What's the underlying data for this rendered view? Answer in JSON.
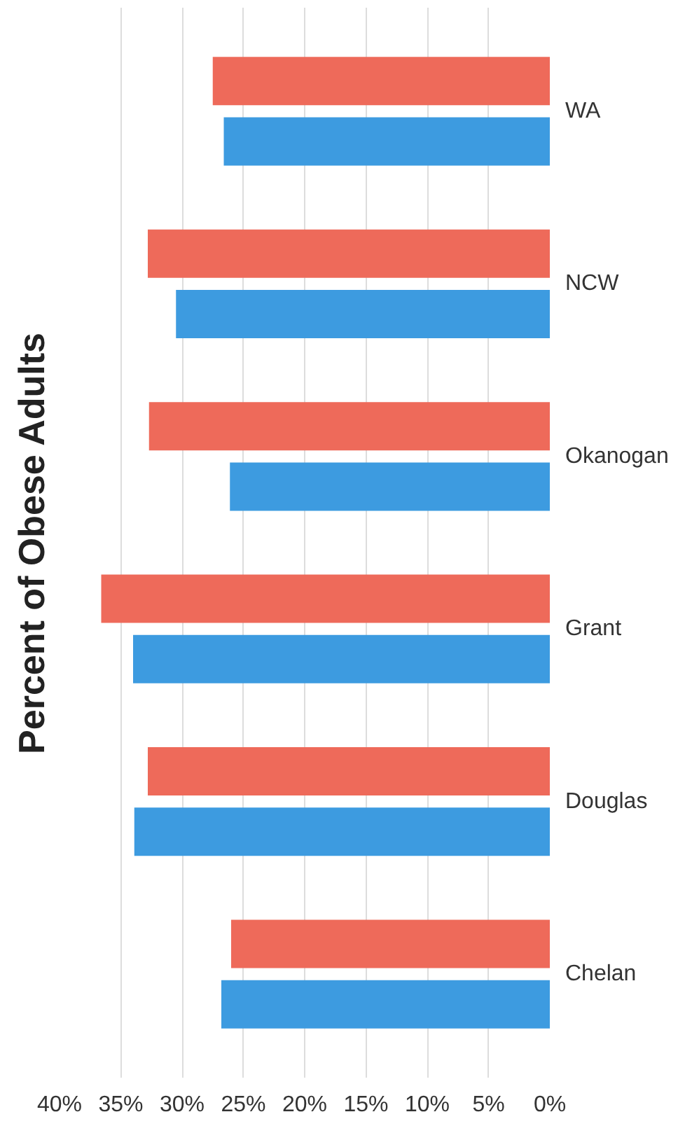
{
  "chart_data": {
    "type": "bar",
    "orientation": "horizontal",
    "title": "Percent of Obese Adults",
    "categories": [
      "WA",
      "NCW",
      "Okanogan",
      "Grant",
      "Douglas",
      "Chelan"
    ],
    "series": [
      {
        "color": "#ee6a5a",
        "values": [
          27.5,
          32.8,
          32.7,
          36.6,
          32.8,
          26.0
        ]
      },
      {
        "color": "#3d9be0",
        "values": [
          26.6,
          30.5,
          26.1,
          34.0,
          33.9,
          26.8
        ]
      }
    ],
    "xlim": [
      40,
      0
    ],
    "xticks": [
      {
        "value": 40,
        "label": "40%"
      },
      {
        "value": 35,
        "label": "35%"
      },
      {
        "value": 30,
        "label": "30%"
      },
      {
        "value": 25,
        "label": "25%"
      },
      {
        "value": 20,
        "label": "20%"
      },
      {
        "value": 15,
        "label": "15%"
      },
      {
        "value": 10,
        "label": "10%"
      },
      {
        "value": 5,
        "label": "5%"
      },
      {
        "value": 0,
        "label": "0%"
      }
    ],
    "grid": "x"
  }
}
